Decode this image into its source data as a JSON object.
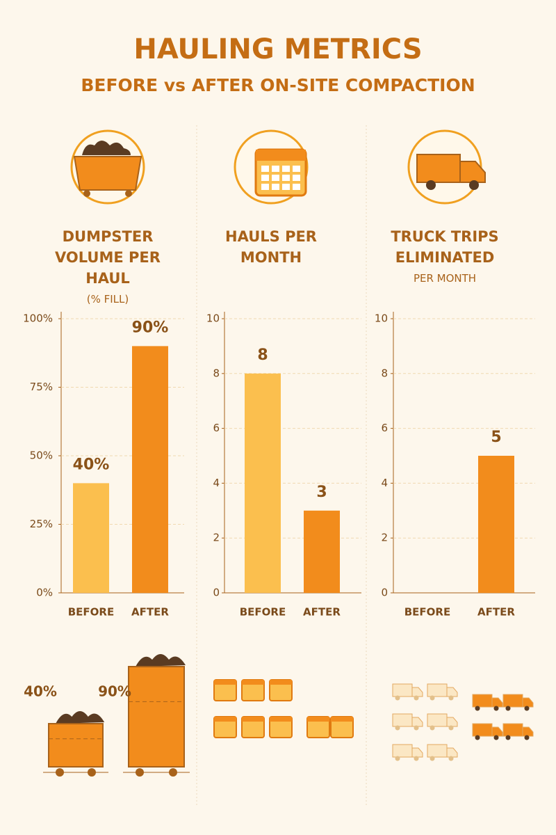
{
  "title": "HAULING METRICS",
  "subtitle": "BEFORE vs AFTER ON-SITE COMPACTION",
  "chart_data": [
    {
      "type": "bar",
      "title": "DUMPSTER VOLUME PER HAUL",
      "subtitle": "(% FILL)",
      "categories": [
        "BEFORE",
        "AFTER"
      ],
      "values": [
        40,
        90
      ],
      "value_labels": [
        "40%",
        "90%"
      ],
      "colors": [
        "#fbbf4e",
        "#f28c1c"
      ],
      "ylim": [
        0,
        100
      ],
      "yticks": [
        {
          "value": 0,
          "label": "0%"
        },
        {
          "value": 25,
          "label": "25%"
        },
        {
          "value": 50,
          "label": "50%"
        },
        {
          "value": 75,
          "label": "75%"
        },
        {
          "value": 100,
          "label": "100%"
        }
      ],
      "grid": true
    },
    {
      "type": "bar",
      "title": "HAULS PER MONTH",
      "categories": [
        "BEFORE",
        "AFTER"
      ],
      "values": [
        8,
        3
      ],
      "colors": [
        "#fbbf4e",
        "#f28c1c"
      ],
      "ylim": [
        0,
        10
      ],
      "yticks": [
        0,
        2,
        4,
        6,
        8,
        10
      ],
      "grid": true
    },
    {
      "type": "bar",
      "title": "TRUCK TRIPS ELIMINATED",
      "subtitle": "PER MONTH",
      "categories": [
        "BEFORE",
        "AFTER"
      ],
      "values": [
        0,
        5
      ],
      "value_labels": [
        null,
        "5"
      ],
      "colors": [
        "#fbbf4e",
        "#f28c1c"
      ],
      "ylim": [
        0,
        10
      ],
      "yticks": [
        0,
        2,
        4,
        6,
        8,
        10
      ],
      "grid": true
    }
  ]
}
